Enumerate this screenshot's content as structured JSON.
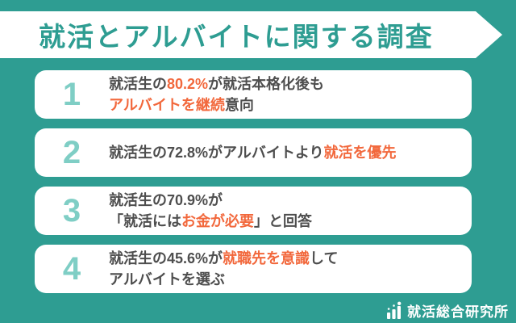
{
  "title": {
    "text": "就活とアルバイトに関する調査"
  },
  "colors": {
    "background_teal": "#2E9D92",
    "number_teal": "#7FCEC5",
    "accent_orange": "#F2683C",
    "text_gray": "#4E4E4E",
    "panel_white": "#FFFFFF"
  },
  "rows": [
    {
      "number": "1",
      "lines": [
        [
          {
            "t": "就活生の"
          },
          {
            "t": "80.2%",
            "accent": true
          },
          {
            "t": "が就活本格化後も"
          }
        ],
        [
          {
            "t": "アルバイトを継続",
            "accent": true
          },
          {
            "t": "意向"
          }
        ]
      ]
    },
    {
      "number": "2",
      "lines": [
        [
          {
            "t": "就活生の72.8%がアルバイトより"
          },
          {
            "t": "就活を優先",
            "accent": true
          }
        ]
      ]
    },
    {
      "number": "3",
      "lines": [
        [
          {
            "t": "就活生の70.9%が"
          }
        ],
        [
          {
            "t": "「就活には"
          },
          {
            "t": "お金が必要",
            "accent": true
          },
          {
            "t": "」と回答"
          }
        ]
      ]
    },
    {
      "number": "4",
      "lines": [
        [
          {
            "t": "就活生の45.6%が"
          },
          {
            "t": "就職先を意識",
            "accent": true
          },
          {
            "t": "して"
          }
        ],
        [
          {
            "t": "アルバイトを選ぶ"
          }
        ]
      ]
    }
  ],
  "footer": {
    "brand_name": "就活総合研究所",
    "logo_icon": "bar-chart-icon"
  }
}
